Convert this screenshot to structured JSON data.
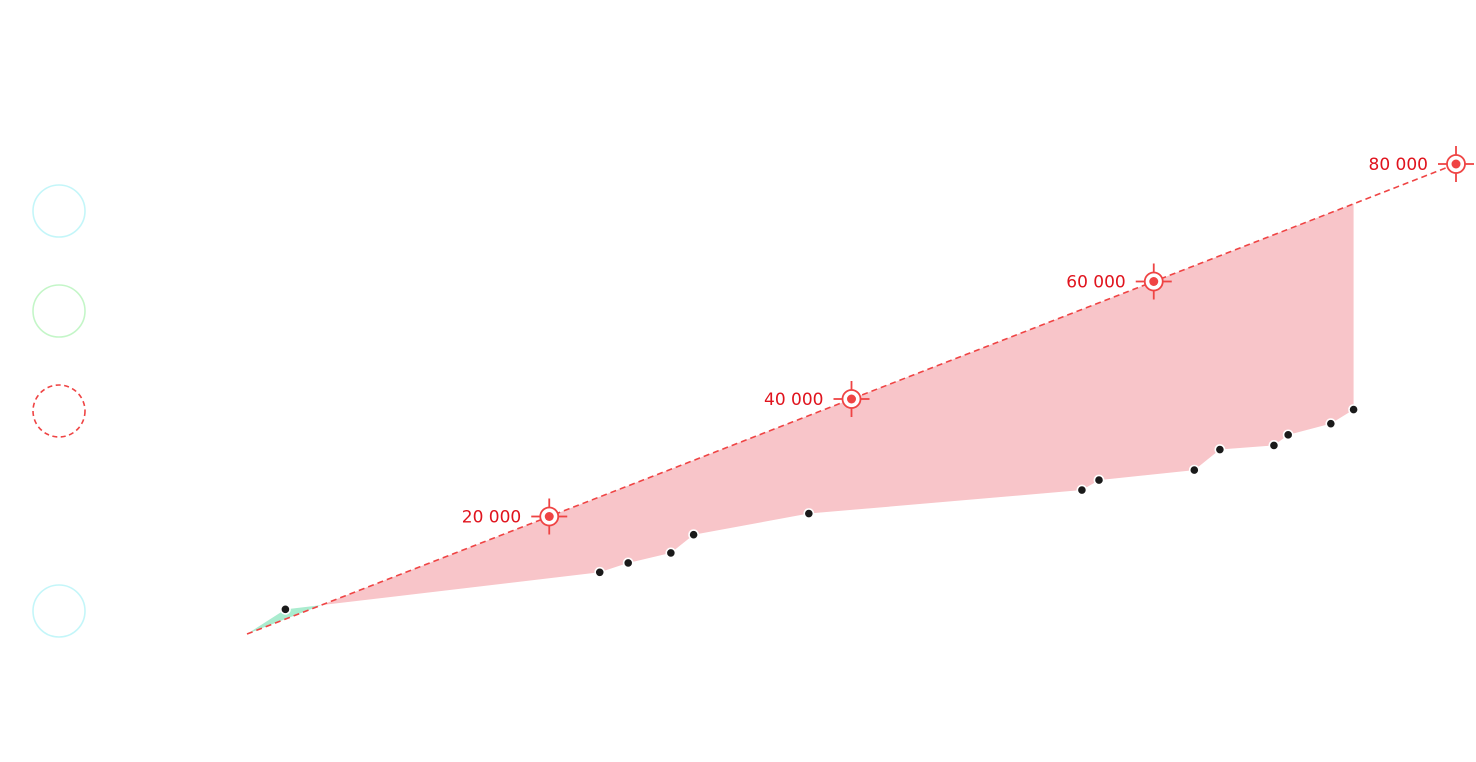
{
  "chart_data": {
    "type": "line",
    "title": "",
    "xlabel": "",
    "ylabel": "",
    "x_domain": [
      0,
      90
    ],
    "y_domain": [
      0,
      90000
    ],
    "series": [
      {
        "name": "",
        "x": [
          2.7,
          24.8,
          26.8,
          29.8,
          31.4,
          39.5,
          58.7,
          59.9,
          66.6,
          68.4,
          72.2,
          73.2,
          76.2,
          77.8
        ],
        "y": [
          4200,
          10500,
          12100,
          13800,
          16900,
          20500,
          24500,
          26200,
          27900,
          31400,
          32100,
          33900,
          35800,
          38200
        ],
        "point_color": "#1a1a1a"
      }
    ],
    "target_line": {
      "x": [
        0,
        85
      ],
      "y": [
        0,
        80000
      ],
      "color": "#ef4444",
      "style": "dashed"
    },
    "milestones": [
      {
        "x": 21.25,
        "value": 20000,
        "label": "20 000"
      },
      {
        "x": 42.5,
        "value": 40000,
        "label": "40 000"
      },
      {
        "x": 63.75,
        "value": 60000,
        "label": "60 000"
      },
      {
        "x": 85,
        "value": 80000,
        "label": "80 000"
      }
    ],
    "fill_colors": {
      "above_target": "#aaeccf",
      "below_target": "#f8c5c9"
    },
    "legend": {
      "placement": "left",
      "entries": [
        {
          "name": "",
          "color": "#c4f6f9",
          "style": "solid"
        },
        {
          "name": "",
          "color": "#c4f6c8",
          "style": "solid"
        },
        {
          "name": "",
          "color": "#ef4444",
          "style": "dashed"
        },
        {
          "name": "",
          "color": "#c4f6f9",
          "style": "solid"
        }
      ]
    },
    "grid": false
  }
}
